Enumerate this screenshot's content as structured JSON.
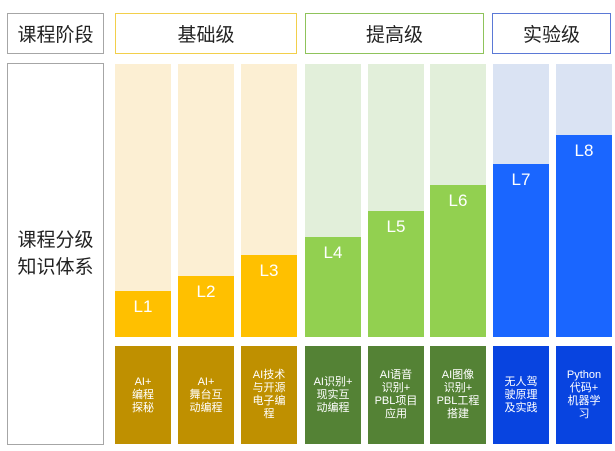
{
  "row_label_top": "课程阶段",
  "row_label_side": "课程分级\n知识体系",
  "stages": [
    {
      "name": "基础级",
      "border": "#f2cf4b",
      "bg": "#fcefd3",
      "fill": "#ffc000",
      "desc_bg": "#bf9000"
    },
    {
      "name": "提高级",
      "border": "#8fc35b",
      "bg": "#e2efda",
      "fill": "#92d050",
      "desc_bg": "#548235"
    },
    {
      "name": "实验级",
      "border": "#5b79d6",
      "bg": "#dae3f3",
      "fill": "#1a66ff",
      "desc_bg": "#0844e0"
    }
  ],
  "levels": [
    {
      "label": "L1",
      "stage": 0,
      "level_fraction": 0.167,
      "desc": "AI+\n编程\n探秘"
    },
    {
      "label": "L2",
      "stage": 0,
      "level_fraction": 0.222,
      "desc": "AI+\n舞台互\n动编程"
    },
    {
      "label": "L3",
      "stage": 0,
      "level_fraction": 0.3,
      "desc": "AI技术\n与开源\n电子编\n程"
    },
    {
      "label": "L4",
      "stage": 1,
      "level_fraction": 0.367,
      "desc": "AI识别+\n现实互\n动编程"
    },
    {
      "label": "L5",
      "stage": 1,
      "level_fraction": 0.463,
      "desc": "AI语音\n识别+\nPBL项目\n应用"
    },
    {
      "label": "L6",
      "stage": 1,
      "level_fraction": 0.556,
      "desc": "AI图像\n识别+\nPBL工程\n搭建"
    },
    {
      "label": "L7",
      "stage": 2,
      "level_fraction": 0.633,
      "desc": "无人驾\n驶原理\n及实践"
    },
    {
      "label": "L8",
      "stage": 2,
      "level_fraction": 0.741,
      "desc": "Python\n代码+\n机器学\n习"
    }
  ]
}
